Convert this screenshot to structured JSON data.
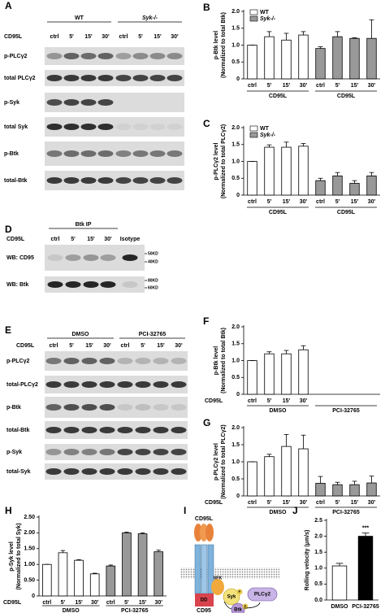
{
  "chart_data": [
    {
      "type": "bar",
      "panel": "B",
      "ylabel": [
        "p-Btk level",
        "(Normalized to total Btk)"
      ],
      "categories": [
        "ctrl",
        "5'",
        "15'",
        "30'",
        "ctrl",
        "5'",
        "15'",
        "30'"
      ],
      "groups": [
        "CD95L",
        "CD95L"
      ],
      "legend": "upper left",
      "series": [
        {
          "name": "WT",
          "color": "#ffffff",
          "values": [
            1.0,
            1.25,
            1.15,
            1.3,
            null,
            null,
            null,
            null
          ],
          "errors": [
            0,
            0.15,
            0.2,
            0.1,
            null,
            null,
            null,
            null
          ]
        },
        {
          "name": "Syk-/-",
          "color": "#999999",
          "values": [
            null,
            null,
            null,
            null,
            0.9,
            1.25,
            1.2,
            1.2
          ],
          "errors": [
            null,
            null,
            null,
            null,
            0.05,
            0.15,
            0.02,
            0.55
          ]
        }
      ],
      "ylim": [
        0,
        2
      ],
      "yticks": [
        0,
        0.5,
        {
          "value": 1,
          "label": "1.0"
        },
        1.5,
        {
          "value": 2,
          "label": "2.0"
        }
      ]
    },
    {
      "type": "bar",
      "panel": "C",
      "ylabel": [
        "p-PLCγ2 level",
        "(Normalized to total PLCγ2)"
      ],
      "categories": [
        "ctrl",
        "5'",
        "15'",
        "30'",
        "ctrl",
        "5'",
        "15'",
        "30'"
      ],
      "groups": [
        "CD95L",
        "CD95L"
      ],
      "legend": "upper left",
      "series": [
        {
          "name": "WT",
          "color": "#ffffff",
          "values": [
            1.0,
            1.42,
            1.42,
            1.45,
            null,
            null,
            null,
            null
          ],
          "errors": [
            0,
            0.07,
            0.15,
            0.08,
            null,
            null,
            null,
            null
          ]
        },
        {
          "name": "Syk-/-",
          "color": "#999999",
          "values": [
            null,
            null,
            null,
            null,
            0.43,
            0.57,
            0.35,
            0.57
          ],
          "errors": [
            null,
            null,
            null,
            null,
            0.07,
            0.1,
            0.08,
            0.1
          ]
        }
      ],
      "ylim": [
        0,
        2
      ],
      "yticks": [
        0,
        0.5,
        {
          "value": 1,
          "label": "1.0"
        },
        1.5,
        {
          "value": 2,
          "label": "2.0"
        }
      ]
    },
    {
      "type": "bar",
      "panel": "F",
      "ylabel": [
        "p-Btk level",
        "(Normalized to total Btk)"
      ],
      "x_row_label": "CD95L",
      "categories": [
        "ctrl",
        "5'",
        "15'",
        "30'",
        null,
        null,
        null,
        null
      ],
      "groups": [
        "DMSO",
        "PCI-32765"
      ],
      "series": [
        {
          "color": "#ffffff",
          "values": [
            1.0,
            1.2,
            1.2,
            1.32,
            null,
            null,
            null,
            null
          ],
          "errors": [
            0,
            0.06,
            0.1,
            0.12,
            null,
            null,
            null,
            null
          ]
        }
      ],
      "ylim": [
        0,
        2
      ],
      "yticks": [
        0,
        0.5,
        {
          "value": 1,
          "label": "1.0"
        },
        1.5,
        {
          "value": 2,
          "label": "2.0"
        }
      ]
    },
    {
      "type": "bar",
      "panel": "G",
      "ylabel": [
        "p-PLCγ2 level",
        "(Normalized to total PLCγ2)"
      ],
      "x_row_label": "CD95L",
      "categories": [
        "ctrl",
        "5'",
        "15'",
        "30'",
        "ctrl",
        "5'",
        "15'",
        "30'"
      ],
      "groups": [
        "DMSO",
        "PCI-32765"
      ],
      "series": [
        {
          "color": "#ffffff",
          "values": [
            1.0,
            1.15,
            1.45,
            1.38,
            null,
            null,
            null,
            null
          ],
          "errors": [
            0,
            0.07,
            0.35,
            0.4,
            null,
            null,
            null,
            null
          ]
        },
        {
          "color": "#999999",
          "values": [
            null,
            null,
            null,
            null,
            0.37,
            0.33,
            0.33,
            0.38
          ],
          "errors": [
            null,
            null,
            null,
            null,
            0.2,
            0.07,
            0.1,
            0.2
          ]
        }
      ],
      "ylim": [
        0,
        2
      ],
      "yticks": [
        0,
        0.5,
        {
          "value": 1,
          "label": "1.0"
        },
        1.5,
        {
          "value": 2,
          "label": "2.0"
        }
      ]
    },
    {
      "type": "bar",
      "panel": "H",
      "ylabel": [
        "p-Syk level",
        "(Normalized to total Syk)"
      ],
      "x_row_label": "CD95L",
      "categories": [
        "ctrl",
        "5'",
        "15'",
        "30'",
        "ctrl",
        "5'",
        "15'",
        "30'"
      ],
      "groups": [
        "DMSO",
        "PCI-32765"
      ],
      "series": [
        {
          "color": "#ffffff",
          "values": [
            1.0,
            1.37,
            1.13,
            0.7,
            null,
            null,
            null,
            null
          ],
          "errors": [
            0,
            0.07,
            0.02,
            0.02,
            null,
            null,
            null,
            null
          ]
        },
        {
          "color": "#999999",
          "values": [
            null,
            null,
            null,
            null,
            0.95,
            2.0,
            1.97,
            1.4
          ],
          "errors": [
            null,
            null,
            null,
            null,
            0.03,
            0.02,
            0.03,
            0.05
          ]
        }
      ],
      "ylim": [
        0,
        2.5
      ],
      "yticks": [
        0,
        {
          "value": 0.5,
          "label": "0.50"
        },
        {
          "value": 1,
          "label": "1.00"
        },
        {
          "value": 1.5,
          "label": "1.50"
        },
        {
          "value": 2,
          "label": "2.00"
        },
        {
          "value": 2.5,
          "label": "2.50"
        }
      ]
    },
    {
      "type": "bar",
      "panel": "J",
      "ylabel": [
        "Rolling velocity (μm/s)"
      ],
      "categories": [
        "DMSO",
        "PCI-32765"
      ],
      "annotation": "***",
      "series": [
        {
          "color": "#ffffff",
          "values": [
            1.07,
            null
          ],
          "errors": [
            0.08,
            null
          ]
        },
        {
          "color": "#000000",
          "values": [
            null,
            2.0
          ],
          "errors": [
            null,
            0.1
          ]
        }
      ],
      "ylim": [
        0,
        2.5
      ],
      "yticks": [
        {
          "value": 0,
          "label": "0.0"
        },
        0.5,
        {
          "value": 1,
          "label": "1.0"
        },
        1.5,
        {
          "value": 2,
          "label": "2.0"
        },
        2.5
      ]
    }
  ],
  "blots": [
    {
      "panel": "A",
      "header": "CD95L",
      "groups": [
        "WT",
        "Syk-/-"
      ],
      "lanes": [
        "ctrl",
        "5'",
        "15'",
        "30'",
        "ctrl",
        "5'",
        "15'",
        "30'"
      ],
      "rows": [
        "p-PLCγ2",
        "total PLCγ2",
        "p-Syk",
        "total Syk",
        "p-Btk",
        "total-Btk"
      ]
    },
    {
      "panel": "D",
      "title": "Btk IP",
      "header": "CD95L",
      "lanes": [
        "ctrl",
        "5'",
        "15'",
        "30'",
        "Isotype"
      ],
      "rows": [
        "WB: CD95",
        "WB: Btk"
      ],
      "markers": [
        "50KD",
        "40KD",
        "80KD",
        "60KD"
      ]
    },
    {
      "panel": "E",
      "header": "CD95L",
      "groups": [
        "DMSO",
        "PCI-32765"
      ],
      "lanes": [
        "ctrl",
        "5'",
        "15'",
        "30'",
        "ctrl",
        "5'",
        "15'",
        "30'"
      ],
      "rows": [
        "p-PLCγ2",
        "total-PLCγ2",
        "p-Btk",
        "total-Btk",
        "p-Syk",
        "total-Syk"
      ]
    }
  ],
  "diagram": {
    "panel": "I",
    "texts": [
      "CD95L",
      "SFK",
      "Syk",
      "Btk",
      "PLCγ2",
      "P",
      "P",
      "DD",
      "CD95"
    ]
  }
}
